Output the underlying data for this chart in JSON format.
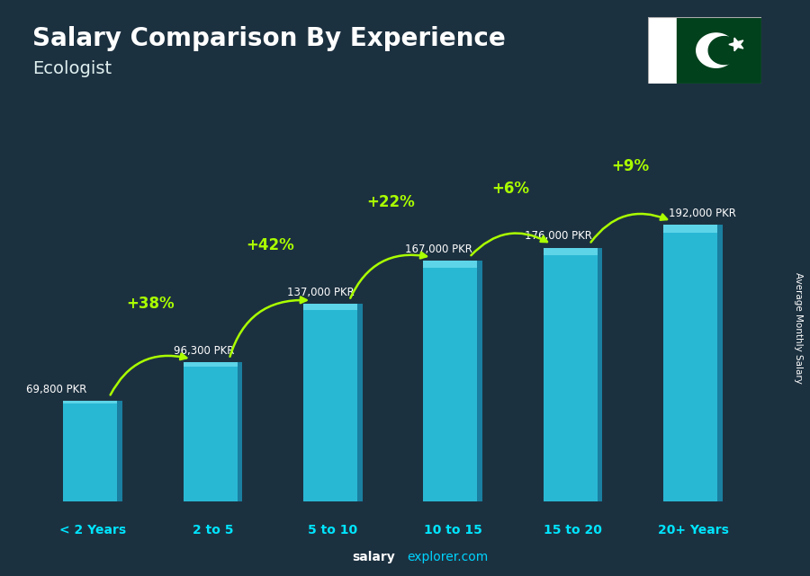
{
  "title": "Salary Comparison By Experience",
  "subtitle": "Ecologist",
  "categories": [
    "< 2 Years",
    "2 to 5",
    "5 to 10",
    "10 to 15",
    "15 to 20",
    "20+ Years"
  ],
  "values": [
    69800,
    96300,
    137000,
    167000,
    176000,
    192000
  ],
  "labels": [
    "69,800 PKR",
    "96,300 PKR",
    "137,000 PKR",
    "167,000 PKR",
    "176,000 PKR",
    "192,000 PKR"
  ],
  "pct_labels": [
    "+38%",
    "+42%",
    "+22%",
    "+6%",
    "+9%"
  ],
  "bar_face_color": "#29b8d4",
  "bar_side_color": "#1a7fa0",
  "bar_top_color": "#5dd4e8",
  "bg_color": "#1c3140",
  "title_color": "#ffffff",
  "subtitle_color": "#e0f0f0",
  "label_color": "#ffffff",
  "pct_color": "#aaff00",
  "cat_color": "#00e5ff",
  "ylabel_text": "Average Monthly Salary",
  "ylim_max": 240000,
  "arrow_color": "#aaff00",
  "flag_green": "#01411c",
  "flag_white": "#ffffff",
  "footer_bold": "salary",
  "footer_light": "explorer.com",
  "footer_bold_color": "#ffffff",
  "footer_light_color": "#00d4ff"
}
